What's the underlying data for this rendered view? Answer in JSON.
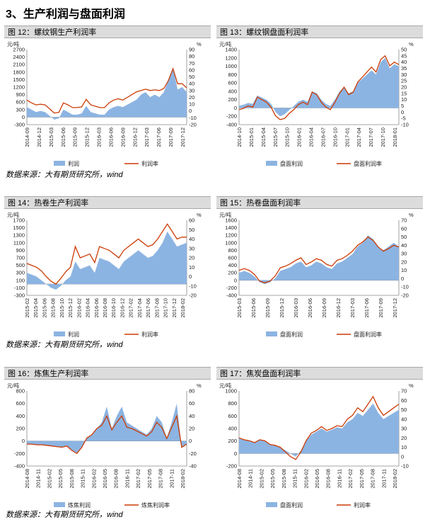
{
  "section_title": "3、生产利润与盘面利润",
  "sources": [
    "数据来源：大有期货研究所，wind",
    "数据来源：大有期货研究所，wind",
    "数据来源：大有期货研究所，wind"
  ],
  "colors": {
    "area": "#8cb4e2",
    "line": "#cc3b05"
  },
  "panels": [
    {
      "title": "图 12：螺纹钢生产利润率",
      "left_unit": "元/吨",
      "right_unit": "%",
      "left_ticks": [
        "2700",
        "2400",
        "2100",
        "1800",
        "1500",
        "1200",
        "900",
        "600",
        "300",
        "0",
        "-300"
      ],
      "right_ticks": [
        "90",
        "80",
        "70",
        "60",
        "50",
        "40",
        "30",
        "20",
        "10",
        "0",
        "-10",
        "-20"
      ],
      "x_ticks": [
        "2014-09",
        "2014-12",
        "2015-03",
        "2015-06",
        "2015-09",
        "2015-12",
        "2016-03",
        "2016-06",
        "2016-09",
        "2016-12",
        "2017-03",
        "2017-06",
        "2017-09",
        "2017-12"
      ],
      "legend": [
        "利润",
        "利润率"
      ],
      "chart_data": {
        "type": "area+line",
        "x_range": [
          "2014-09",
          "2018-02"
        ],
        "ylim_left": [
          -300,
          2700
        ],
        "ylim_right": [
          -20,
          90
        ],
        "series": [
          {
            "name": "利润",
            "axis": "left",
            "values": [
              400,
              300,
              200,
              250,
              200,
              50,
              -100,
              -50,
              300,
              200,
              100,
              100,
              150,
              450,
              200,
              150,
              100,
              100,
              300,
              400,
              450,
              400,
              500,
              600,
              700,
              900,
              1000,
              800,
              900,
              800,
              1000,
              1500,
              2000,
              1100,
              1200,
              1000
            ]
          },
          {
            "name": "利润率",
            "axis": "right",
            "values": [
              16,
              12,
              9,
              10,
              9,
              3,
              -3,
              -2,
              12,
              9,
              5,
              5,
              6,
              17,
              9,
              7,
              5,
              5,
              12,
              16,
              18,
              16,
              20,
              24,
              28,
              30,
              32,
              30,
              31,
              30,
              33,
              45,
              62,
              40,
              40,
              34
            ]
          }
        ]
      }
    },
    {
      "title": "图 13：螺纹钢盘面利润率",
      "left_unit": "元/吨",
      "right_unit": "%",
      "left_ticks": [
        "1400",
        "1200",
        "1000",
        "800",
        "600",
        "400",
        "200",
        "0",
        "-200",
        "-400"
      ],
      "right_ticks": [
        "50",
        "45",
        "40",
        "35",
        "30",
        "25",
        "20",
        "15",
        "10",
        "5",
        "0",
        "-5",
        "-10"
      ],
      "x_ticks": [
        "2014-10",
        "2015-01",
        "2015-04",
        "2015-07",
        "2015-10",
        "2016-01",
        "2016-04",
        "2016-07",
        "2016-10",
        "2017-01",
        "2017-04",
        "2017-07",
        "2017-10",
        "2018-01"
      ],
      "legend": [
        "盘面利润",
        "盘面利润率"
      ],
      "chart_data": {
        "type": "area+line",
        "x_range": [
          "2014-10",
          "2018-02"
        ],
        "ylim_left": [
          -400,
          1400
        ],
        "ylim_right": [
          -10,
          50
        ],
        "series": [
          {
            "name": "盘面利润",
            "axis": "left",
            "values": [
              50,
              80,
              120,
              100,
              300,
              250,
              200,
              100,
              -100,
              -200,
              -150,
              -50,
              50,
              150,
              200,
              150,
              400,
              350,
              200,
              100,
              50,
              200,
              400,
              500,
              350,
              400,
              600,
              700,
              800,
              900,
              800,
              1100,
              1200,
              950,
              1050,
              1000
            ]
          },
          {
            "name": "盘面利润率",
            "axis": "right",
            "values": [
              2,
              3,
              5,
              4,
              12,
              10,
              8,
              4,
              -3,
              -6,
              -5,
              -1,
              2,
              6,
              8,
              6,
              16,
              14,
              8,
              4,
              2,
              8,
              15,
              20,
              14,
              16,
              24,
              28,
              32,
              36,
              32,
              42,
              45,
              37,
              40,
              38
            ]
          }
        ]
      }
    },
    {
      "title": "图 14：热卷生产利润率",
      "left_unit": "元/吨",
      "right_unit": "%",
      "left_ticks": [
        "1700",
        "1500",
        "1300",
        "1100",
        "900",
        "700",
        "500",
        "300",
        "100",
        "-100",
        "-300"
      ],
      "right_ticks": [
        "60",
        "50",
        "40",
        "30",
        "20",
        "10",
        "0",
        "-10",
        "-20"
      ],
      "x_ticks": [
        "2015-02",
        "2015-04",
        "2015-06",
        "2015-08",
        "2015-10",
        "2015-12",
        "2016-02",
        "2016-04",
        "2016-06",
        "2016-08",
        "2016-10",
        "2016-12",
        "2017-02",
        "2017-04",
        "2017-06",
        "2017-08",
        "2017-10",
        "2017-12",
        "2018-02"
      ],
      "legend": [
        "利润",
        "利润率"
      ],
      "chart_data": {
        "type": "area+line",
        "x_range": [
          "2015-02",
          "2018-02"
        ],
        "ylim_left": [
          -300,
          1700
        ],
        "ylim_right": [
          -20,
          60
        ],
        "series": [
          {
            "name": "利润",
            "axis": "left",
            "values": [
              300,
              250,
              200,
              100,
              0,
              -100,
              -150,
              -50,
              100,
              200,
              600,
              400,
              450,
              500,
              300,
              700,
              650,
              600,
              500,
              400,
              600,
              700,
              800,
              900,
              800,
              700,
              750,
              900,
              1100,
              1400,
              1200,
              1000,
              1050,
              1100
            ]
          },
          {
            "name": "利润率",
            "axis": "right",
            "values": [
              14,
              12,
              10,
              6,
              0,
              -5,
              -8,
              -2,
              5,
              10,
              32,
              20,
              22,
              24,
              15,
              32,
              30,
              28,
              24,
              20,
              28,
              32,
              36,
              40,
              36,
              32,
              34,
              40,
              48,
              56,
              48,
              40,
              42,
              42
            ]
          }
        ]
      }
    },
    {
      "title": "图 15：热卷盘面利润率",
      "left_unit": "元/吨",
      "right_unit": "%",
      "left_ticks": [
        "1600",
        "1400",
        "1200",
        "1000",
        "800",
        "600",
        "400",
        "200",
        "0",
        "-200",
        "-400"
      ],
      "right_ticks": [
        "70",
        "60",
        "50",
        "40",
        "30",
        "20",
        "10",
        "0",
        "-10",
        "-20"
      ],
      "x_ticks": [
        "2015-03",
        "2015-06",
        "2015-09",
        "2015-12",
        "2016-03",
        "2016-06",
        "2016-09",
        "2016-12",
        "2017-03",
        "2017-06",
        "2017-09",
        "2017-12"
      ],
      "legend": [
        "盘面利润",
        "盘面利润率"
      ],
      "chart_data": {
        "type": "area+line",
        "x_range": [
          "2015-03",
          "2018-02"
        ],
        "ylim_left": [
          -400,
          1600
        ],
        "ylim_right": [
          -20,
          70
        ],
        "series": [
          {
            "name": "盘面利润",
            "axis": "left",
            "values": [
              200,
              250,
              200,
              100,
              -50,
              -100,
              -50,
              50,
              250,
              300,
              350,
              450,
              500,
              350,
              400,
              500,
              450,
              350,
              300,
              450,
              500,
              600,
              700,
              900,
              1000,
              1200,
              1100,
              900,
              800,
              900,
              1000,
              900
            ]
          },
          {
            "name": "盘面利润率",
            "axis": "right",
            "values": [
              10,
              12,
              10,
              5,
              -3,
              -5,
              -3,
              3,
              13,
              15,
              18,
              22,
              25,
              17,
              20,
              24,
              22,
              17,
              15,
              22,
              24,
              28,
              33,
              40,
              44,
              50,
              46,
              38,
              33,
              36,
              40,
              38
            ]
          }
        ]
      }
    },
    {
      "title": "图 16：炼焦生产利润率",
      "left_unit": "元/吨",
      "right_unit": "%",
      "left_ticks": [
        "800",
        "600",
        "400",
        "200",
        "0",
        "-200",
        "-400"
      ],
      "right_ticks": [
        "80",
        "60",
        "40",
        "20",
        "0",
        "-20",
        "-40"
      ],
      "x_ticks": [
        "2014-08",
        "2014-11",
        "2015-02",
        "2015-05",
        "2015-08",
        "2015-11",
        "2016-02",
        "2016-05",
        "2016-08",
        "2016-11",
        "2017-02",
        "2017-05",
        "2017-08",
        "2017-11",
        "2018-02"
      ],
      "legend": [
        "炼焦利润",
        "炼焦利润率"
      ],
      "chart_data": {
        "type": "area+line",
        "x_range": [
          "2014-08",
          "2018-02"
        ],
        "ylim_left": [
          -400,
          800
        ],
        "ylim_right": [
          -40,
          80
        ],
        "series": [
          {
            "name": "炼焦利润",
            "axis": "left",
            "values": [
              -50,
              -50,
              -60,
              -60,
              -70,
              -80,
              -90,
              -100,
              -80,
              -150,
              -200,
              -100,
              50,
              100,
              200,
              300,
              550,
              200,
              400,
              550,
              300,
              250,
              200,
              150,
              100,
              200,
              400,
              300,
              50,
              300,
              600,
              -100,
              -50
            ]
          },
          {
            "name": "炼焦利润率",
            "axis": "right",
            "values": [
              -5,
              -5,
              -6,
              -6,
              -7,
              -8,
              -9,
              -10,
              -8,
              -15,
              -20,
              -10,
              5,
              10,
              20,
              25,
              40,
              18,
              30,
              40,
              22,
              20,
              16,
              12,
              8,
              15,
              30,
              22,
              4,
              22,
              40,
              -10,
              -5
            ]
          }
        ]
      }
    },
    {
      "title": "图 17：焦炭盘面利润率",
      "left_unit": "元/吨",
      "right_unit": "%",
      "left_ticks": [
        "1000",
        "800",
        "600",
        "400",
        "200",
        "0",
        "-200"
      ],
      "right_ticks": [
        "70",
        "60",
        "50",
        "40",
        "30",
        "20",
        "10",
        "0",
        "-10"
      ],
      "x_ticks": [
        "2014-08",
        "2014-11",
        "2015-02",
        "2015-05",
        "2015-08",
        "2015-11",
        "2016-02",
        "2016-05",
        "2016-08",
        "2016-11",
        "2017-02",
        "2017-05",
        "2017-08",
        "2017-11",
        "2018-02"
      ],
      "legend": [
        "盘面利润",
        "利润率"
      ],
      "chart_data": {
        "type": "area+line",
        "x_range": [
          "2014-08",
          "2018-02"
        ],
        "ylim_left": [
          -200,
          1000
        ],
        "ylim_right": [
          -10,
          70
        ],
        "series": [
          {
            "name": "盘面利润",
            "axis": "left",
            "values": [
              250,
              220,
              200,
              180,
              220,
              200,
              150,
              130,
              100,
              50,
              0,
              -50,
              50,
              200,
              300,
              350,
              400,
              350,
              380,
              420,
              400,
              500,
              550,
              650,
              600,
              700,
              800,
              650,
              550,
              600,
              650,
              700
            ]
          },
          {
            "name": "利润率",
            "axis": "right",
            "values": [
              20,
              18,
              17,
              15,
              18,
              17,
              13,
              12,
              10,
              5,
              0,
              -3,
              5,
              17,
              25,
              28,
              32,
              28,
              30,
              33,
              32,
              40,
              44,
              52,
              48,
              56,
              64,
              52,
              44,
              48,
              52,
              56
            ]
          }
        ]
      }
    }
  ]
}
